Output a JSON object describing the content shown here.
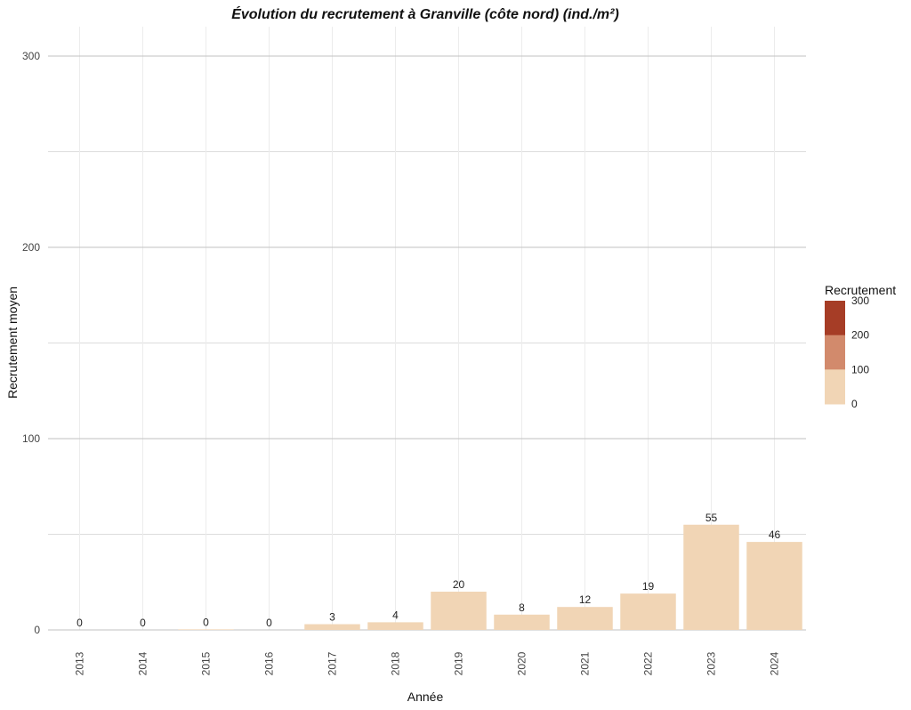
{
  "chart_data": {
    "type": "bar",
    "title": "Évolution du recrutement à Granville (côte nord) (ind./m²)",
    "xlabel": "Année",
    "ylabel": "Recrutement moyen",
    "categories": [
      "2013",
      "2014",
      "2015",
      "2016",
      "2017",
      "2018",
      "2019",
      "2020",
      "2021",
      "2022",
      "2023",
      "2024"
    ],
    "values": [
      0,
      0,
      0.3,
      0,
      3,
      4,
      20,
      8,
      12,
      19,
      55,
      46
    ],
    "value_labels": [
      "0",
      "0",
      "0",
      "0",
      "3",
      "4",
      "20",
      "8",
      "12",
      "19",
      "55",
      "46"
    ],
    "ylim": [
      0,
      300
    ],
    "y_ticks": [
      "0",
      "100",
      "200",
      "300"
    ],
    "grid": true,
    "bar_color": "#f1d5b5",
    "legend": {
      "title": "Recrutement",
      "placement": "right",
      "colors": [
        "#f1d5b5",
        "#d28a6c",
        "#a63d26"
      ],
      "ticks": [
        "0",
        "100",
        "200",
        "300"
      ]
    }
  }
}
